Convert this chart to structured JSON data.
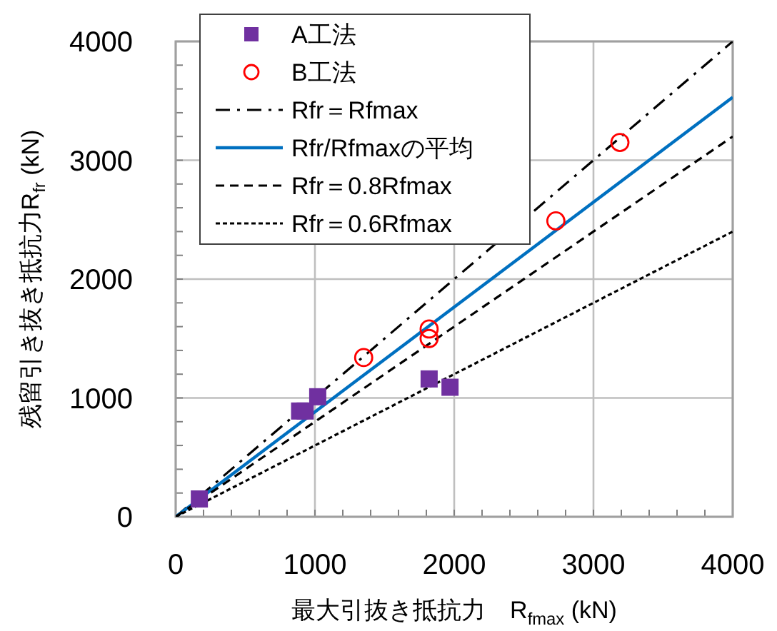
{
  "chart_data": {
    "type": "scatter",
    "xlabel": "最大引抜き抵抗力　R$_{fmax}$ (kN)",
    "ylabel": "残留引き抜き抵抗力R$_{fr}$ (kN)",
    "xlim": [
      0,
      4000
    ],
    "ylim": [
      0,
      4000
    ],
    "xticks": [
      0,
      {
        "value": 200,
        "label": null
      },
      {
        "value": 400,
        "label": null
      },
      {
        "value": 600,
        "label": null
      },
      {
        "value": 800,
        "label": null
      },
      1000,
      {
        "value": 1200,
        "label": null
      },
      {
        "value": 1400,
        "label": null
      },
      {
        "value": 1600,
        "label": null
      },
      {
        "value": 1800,
        "label": null
      },
      2000,
      {
        "value": 2200,
        "label": null
      },
      {
        "value": 2400,
        "label": null
      },
      {
        "value": 2600,
        "label": null
      },
      {
        "value": 2800,
        "label": null
      },
      3000,
      {
        "value": 3200,
        "label": null
      },
      {
        "value": 3400,
        "label": null
      },
      {
        "value": 3600,
        "label": null
      },
      {
        "value": 3800,
        "label": null
      },
      4000
    ],
    "yticks": [
      0,
      {
        "value": 200,
        "label": null
      },
      {
        "value": 400,
        "label": null
      },
      {
        "value": 600,
        "label": null
      },
      {
        "value": 800,
        "label": null
      },
      1000,
      {
        "value": 1200,
        "label": null
      },
      {
        "value": 1400,
        "label": null
      },
      {
        "value": 1600,
        "label": null
      },
      {
        "value": 1800,
        "label": null
      },
      2000,
      {
        "value": 2200,
        "label": null
      },
      {
        "value": 2400,
        "label": null
      },
      {
        "value": 2600,
        "label": null
      },
      {
        "value": 2800,
        "label": null
      },
      3000,
      {
        "value": 3200,
        "label": null
      },
      {
        "value": 3400,
        "label": null
      },
      {
        "value": 3600,
        "label": null
      },
      {
        "value": 3800,
        "label": null
      },
      4000
    ],
    "grid": true,
    "legend": "top left",
    "series": [
      {
        "name": "A工法",
        "marker": "square",
        "color": "#7030a0",
        "x": [
          170,
          890,
          930,
          1020,
          1820,
          1970
        ],
        "values": [
          150,
          890,
          890,
          1010,
          1160,
          1090
        ]
      },
      {
        "name": "B工法",
        "marker": "circle",
        "color": "#ff0000",
        "x": [
          1350,
          1820,
          1820,
          2730,
          3190
        ],
        "values": [
          1340,
          1580,
          1500,
          2490,
          3150
        ]
      },
      {
        "name": "Rfr＝Rfmax",
        "type": "line",
        "line_style": "dashdot",
        "color": "#000000",
        "x": [
          0,
          4000
        ],
        "values": [
          0,
          4000
        ]
      },
      {
        "name": "Rfr/Rfmaxの平均",
        "type": "line",
        "line_style": "solid",
        "color": "#0070c0",
        "x": [
          0,
          4000
        ],
        "values": [
          0,
          3530
        ]
      },
      {
        "name": "Rfr＝0.8Rfmax",
        "type": "line",
        "line_style": "dashed",
        "color": "#000000",
        "x": [
          0,
          4000
        ],
        "values": [
          0,
          3200
        ]
      },
      {
        "name": "Rfr＝0.6Rfmax",
        "type": "line",
        "line_style": "dotted",
        "color": "#000000",
        "x": [
          0,
          4000
        ],
        "values": [
          0,
          2400
        ]
      }
    ]
  }
}
